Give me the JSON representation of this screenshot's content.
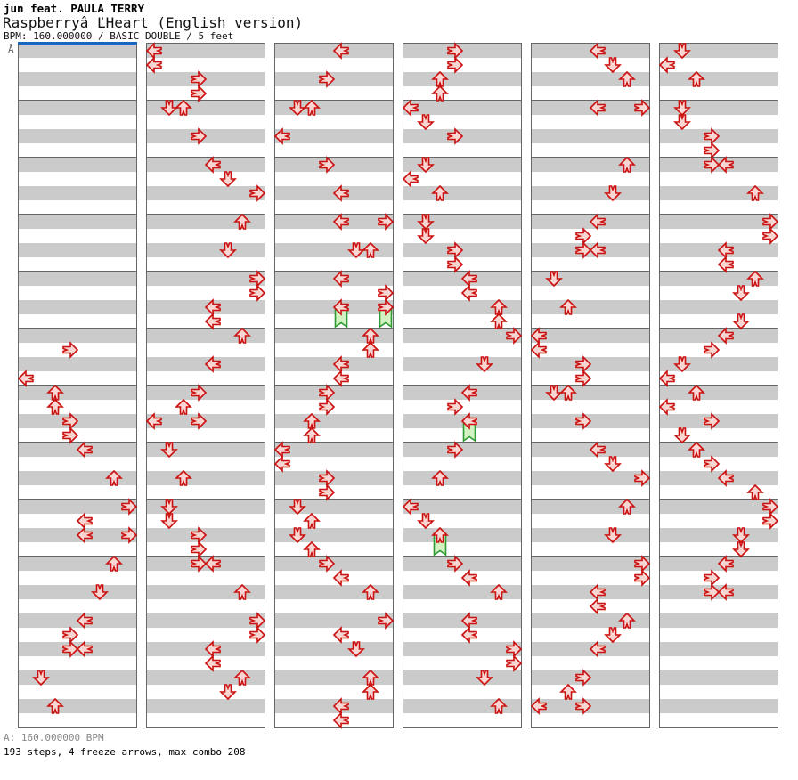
{
  "header": {
    "artist": "jun feat. PAULA TERRY",
    "title": "Raspberryâ ĽHeart (English version)",
    "meta": "BPM: 160.000000 / BASIC DOUBLE / 5 feet"
  },
  "footer": {
    "bpm_line": "A: 160.000000 BPM",
    "stats_line": "193 steps, 4 freeze arrows, max combo 208"
  },
  "colors": {
    "stripe_gray": "#cbcbcb",
    "border_gray": "#666666",
    "section_marker_blue": "#1766c0",
    "arrow_fill": "#f8d6d2",
    "arrow_border": "#cc0f0f",
    "freeze_fill": "#d2f2c2",
    "freeze_border": "#2e9b32"
  },
  "chart": {
    "marker_label": "Â",
    "lanes": 8,
    "rows_per_column": 48,
    "stripes_per_measure": 4,
    "lane_directions": [
      "left",
      "down",
      "up",
      "right",
      "left",
      "down",
      "up",
      "right"
    ],
    "columns": [
      {
        "arrows": [
          {
            "r": 21,
            "l": 3
          },
          {
            "r": 23,
            "l": 0
          },
          {
            "r": 24,
            "l": 2
          },
          {
            "r": 25,
            "l": 2
          },
          {
            "r": 26,
            "l": 3
          },
          {
            "r": 27,
            "l": 3
          },
          {
            "r": 28,
            "l": 4
          },
          {
            "r": 30,
            "l": 6
          },
          {
            "r": 32,
            "l": 7
          },
          {
            "r": 33,
            "l": 4
          },
          {
            "r": 34,
            "l": 4
          },
          {
            "r": 34,
            "l": 7
          },
          {
            "r": 36,
            "l": 6
          },
          {
            "r": 38,
            "l": 5
          },
          {
            "r": 40,
            "l": 4
          },
          {
            "r": 41,
            "l": 3
          },
          {
            "r": 42,
            "l": 3
          },
          {
            "r": 42,
            "l": 4
          },
          {
            "r": 44,
            "l": 1
          },
          {
            "r": 46,
            "l": 2
          }
        ]
      },
      {
        "arrows": [
          {
            "r": 0,
            "l": 0
          },
          {
            "r": 1,
            "l": 0
          },
          {
            "r": 2,
            "l": 3
          },
          {
            "r": 3,
            "l": 3
          },
          {
            "r": 4,
            "l": 1
          },
          {
            "r": 4,
            "l": 2
          },
          {
            "r": 6,
            "l": 3
          },
          {
            "r": 8,
            "l": 4
          },
          {
            "r": 9,
            "l": 5
          },
          {
            "r": 10,
            "l": 7
          },
          {
            "r": 12,
            "l": 6
          },
          {
            "r": 14,
            "l": 5
          },
          {
            "r": 16,
            "l": 7
          },
          {
            "r": 17,
            "l": 7
          },
          {
            "r": 18,
            "l": 4
          },
          {
            "r": 19,
            "l": 4
          },
          {
            "r": 20,
            "l": 6
          },
          {
            "r": 22,
            "l": 4
          },
          {
            "r": 24,
            "l": 3
          },
          {
            "r": 25,
            "l": 2
          },
          {
            "r": 26,
            "l": 0
          },
          {
            "r": 26,
            "l": 3
          },
          {
            "r": 28,
            "l": 1
          },
          {
            "r": 30,
            "l": 2
          },
          {
            "r": 32,
            "l": 1
          },
          {
            "r": 33,
            "l": 1
          },
          {
            "r": 34,
            "l": 3
          },
          {
            "r": 35,
            "l": 3
          },
          {
            "r": 36,
            "l": 3
          },
          {
            "r": 36,
            "l": 4
          },
          {
            "r": 38,
            "l": 6
          },
          {
            "r": 40,
            "l": 7
          },
          {
            "r": 41,
            "l": 7
          },
          {
            "r": 42,
            "l": 4
          },
          {
            "r": 43,
            "l": 4
          },
          {
            "r": 44,
            "l": 6
          },
          {
            "r": 45,
            "l": 5
          }
        ]
      },
      {
        "arrows": [
          {
            "r": 0,
            "l": 4
          },
          {
            "r": 2,
            "l": 3
          },
          {
            "r": 4,
            "l": 1
          },
          {
            "r": 4,
            "l": 2
          },
          {
            "r": 6,
            "l": 0
          },
          {
            "r": 8,
            "l": 3
          },
          {
            "r": 10,
            "l": 4
          },
          {
            "r": 12,
            "l": 4
          },
          {
            "r": 12,
            "l": 7
          },
          {
            "r": 14,
            "l": 5
          },
          {
            "r": 14,
            "l": 6
          },
          {
            "r": 16,
            "l": 4
          },
          {
            "r": 17,
            "l": 7
          },
          {
            "r": 18,
            "l": 4,
            "f": 1
          },
          {
            "r": 18,
            "l": 7,
            "f": 1
          },
          {
            "r": 20,
            "l": 6
          },
          {
            "r": 21,
            "l": 6
          },
          {
            "r": 22,
            "l": 4
          },
          {
            "r": 23,
            "l": 4
          },
          {
            "r": 24,
            "l": 3
          },
          {
            "r": 25,
            "l": 3
          },
          {
            "r": 26,
            "l": 2
          },
          {
            "r": 27,
            "l": 2
          },
          {
            "r": 28,
            "l": 0
          },
          {
            "r": 29,
            "l": 0
          },
          {
            "r": 30,
            "l": 3
          },
          {
            "r": 31,
            "l": 3
          },
          {
            "r": 32,
            "l": 1
          },
          {
            "r": 33,
            "l": 2
          },
          {
            "r": 34,
            "l": 1
          },
          {
            "r": 35,
            "l": 2
          },
          {
            "r": 36,
            "l": 3
          },
          {
            "r": 37,
            "l": 4
          },
          {
            "r": 38,
            "l": 6
          },
          {
            "r": 40,
            "l": 7
          },
          {
            "r": 41,
            "l": 4
          },
          {
            "r": 42,
            "l": 5
          },
          {
            "r": 44,
            "l": 6
          },
          {
            "r": 45,
            "l": 6
          },
          {
            "r": 46,
            "l": 4
          },
          {
            "r": 47,
            "l": 4
          }
        ]
      },
      {
        "arrows": [
          {
            "r": 0,
            "l": 3
          },
          {
            "r": 1,
            "l": 3
          },
          {
            "r": 2,
            "l": 2
          },
          {
            "r": 3,
            "l": 2
          },
          {
            "r": 4,
            "l": 0
          },
          {
            "r": 5,
            "l": 1
          },
          {
            "r": 6,
            "l": 3
          },
          {
            "r": 8,
            "l": 1
          },
          {
            "r": 9,
            "l": 0
          },
          {
            "r": 10,
            "l": 2
          },
          {
            "r": 12,
            "l": 1
          },
          {
            "r": 13,
            "l": 1
          },
          {
            "r": 14,
            "l": 3
          },
          {
            "r": 15,
            "l": 3
          },
          {
            "r": 16,
            "l": 4
          },
          {
            "r": 17,
            "l": 4
          },
          {
            "r": 18,
            "l": 6
          },
          {
            "r": 19,
            "l": 6
          },
          {
            "r": 20,
            "l": 7
          },
          {
            "r": 22,
            "l": 5
          },
          {
            "r": 24,
            "l": 4
          },
          {
            "r": 25,
            "l": 3
          },
          {
            "r": 26,
            "l": 4,
            "f": 1
          },
          {
            "r": 28,
            "l": 3
          },
          {
            "r": 30,
            "l": 2
          },
          {
            "r": 32,
            "l": 0
          },
          {
            "r": 33,
            "l": 1
          },
          {
            "r": 34,
            "l": 2,
            "f": 1
          },
          {
            "r": 36,
            "l": 3
          },
          {
            "r": 37,
            "l": 4
          },
          {
            "r": 38,
            "l": 6
          },
          {
            "r": 40,
            "l": 4
          },
          {
            "r": 41,
            "l": 4
          },
          {
            "r": 42,
            "l": 7
          },
          {
            "r": 43,
            "l": 7
          },
          {
            "r": 44,
            "l": 5
          },
          {
            "r": 46,
            "l": 6
          }
        ]
      },
      {
        "arrows": [
          {
            "r": 0,
            "l": 4
          },
          {
            "r": 1,
            "l": 5
          },
          {
            "r": 2,
            "l": 6
          },
          {
            "r": 4,
            "l": 4
          },
          {
            "r": 4,
            "l": 7
          },
          {
            "r": 8,
            "l": 6
          },
          {
            "r": 10,
            "l": 5
          },
          {
            "r": 12,
            "l": 4
          },
          {
            "r": 13,
            "l": 3
          },
          {
            "r": 14,
            "l": 3
          },
          {
            "r": 14,
            "l": 4
          },
          {
            "r": 16,
            "l": 1
          },
          {
            "r": 18,
            "l": 2
          },
          {
            "r": 20,
            "l": 0
          },
          {
            "r": 21,
            "l": 0
          },
          {
            "r": 22,
            "l": 3
          },
          {
            "r": 23,
            "l": 3
          },
          {
            "r": 24,
            "l": 1
          },
          {
            "r": 24,
            "l": 2
          },
          {
            "r": 26,
            "l": 3
          },
          {
            "r": 28,
            "l": 4
          },
          {
            "r": 29,
            "l": 5
          },
          {
            "r": 30,
            "l": 7
          },
          {
            "r": 32,
            "l": 6
          },
          {
            "r": 34,
            "l": 5
          },
          {
            "r": 36,
            "l": 7
          },
          {
            "r": 37,
            "l": 7
          },
          {
            "r": 38,
            "l": 4
          },
          {
            "r": 39,
            "l": 4
          },
          {
            "r": 40,
            "l": 6
          },
          {
            "r": 41,
            "l": 5
          },
          {
            "r": 42,
            "l": 4
          },
          {
            "r": 44,
            "l": 3
          },
          {
            "r": 45,
            "l": 2
          },
          {
            "r": 46,
            "l": 0
          },
          {
            "r": 46,
            "l": 3
          }
        ]
      },
      {
        "arrows": [
          {
            "r": 0,
            "l": 1
          },
          {
            "r": 1,
            "l": 0
          },
          {
            "r": 2,
            "l": 2
          },
          {
            "r": 4,
            "l": 1
          },
          {
            "r": 5,
            "l": 1
          },
          {
            "r": 6,
            "l": 3
          },
          {
            "r": 7,
            "l": 3
          },
          {
            "r": 8,
            "l": 3
          },
          {
            "r": 8,
            "l": 4
          },
          {
            "r": 10,
            "l": 6
          },
          {
            "r": 12,
            "l": 7
          },
          {
            "r": 13,
            "l": 7
          },
          {
            "r": 14,
            "l": 4
          },
          {
            "r": 15,
            "l": 4
          },
          {
            "r": 16,
            "l": 6
          },
          {
            "r": 17,
            "l": 5
          },
          {
            "r": 19,
            "l": 5
          },
          {
            "r": 20,
            "l": 4
          },
          {
            "r": 21,
            "l": 3
          },
          {
            "r": 22,
            "l": 1
          },
          {
            "r": 23,
            "l": 0
          },
          {
            "r": 24,
            "l": 2
          },
          {
            "r": 25,
            "l": 0
          },
          {
            "r": 26,
            "l": 3
          },
          {
            "r": 27,
            "l": 1
          },
          {
            "r": 28,
            "l": 2
          },
          {
            "r": 29,
            "l": 3
          },
          {
            "r": 30,
            "l": 4
          },
          {
            "r": 31,
            "l": 6
          },
          {
            "r": 32,
            "l": 7
          },
          {
            "r": 33,
            "l": 7
          },
          {
            "r": 34,
            "l": 5
          },
          {
            "r": 35,
            "l": 5
          },
          {
            "r": 36,
            "l": 4
          },
          {
            "r": 37,
            "l": 3
          },
          {
            "r": 38,
            "l": 3
          },
          {
            "r": 38,
            "l": 4
          }
        ]
      }
    ]
  }
}
